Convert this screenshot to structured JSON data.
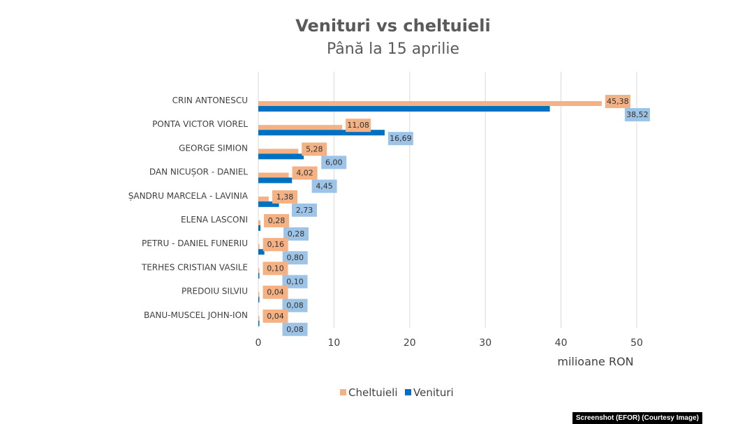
{
  "chart_data": {
    "type": "bar",
    "orientation": "horizontal",
    "title": "Venituri vs cheltuieli",
    "subtitle": "Până la 15 aprilie",
    "xlabel": "milioane RON",
    "xlim": [
      0,
      50
    ],
    "xticks": [
      0,
      10,
      20,
      30,
      40,
      50
    ],
    "grid": true,
    "legend_position": "bottom",
    "categories": [
      "CRIN ANTONESCU",
      "PONTA VICTOR VIOREL",
      "GEORGE SIMION",
      "DAN NICUȘOR - DANIEL",
      "ȘANDRU MARCELA - LAVINIA",
      "ELENA LASCONI",
      "PETRU - DANIEL FUNERIU",
      "TERHES CRISTIAN VASILE",
      "PREDOIU SILVIU",
      "BANU-MUSCEL JOHN-ION"
    ],
    "series": [
      {
        "name": "Cheltuieli",
        "color": "#F4B183",
        "label_bg": "#F4B183",
        "values": [
          45.38,
          11.08,
          5.28,
          4.02,
          1.38,
          0.28,
          0.16,
          0.1,
          0.04,
          0.04
        ],
        "labels": [
          "45,38",
          "11,08",
          "5,28",
          "4,02",
          "1,38",
          "0,28",
          "0,16",
          "0,10",
          "0,04",
          "0,04"
        ]
      },
      {
        "name": "Venituri",
        "color": "#0070C0",
        "label_bg": "#9DC3E6",
        "values": [
          38.52,
          16.69,
          6.0,
          4.45,
          2.73,
          0.28,
          0.8,
          0.1,
          0.08,
          0.08
        ],
        "labels": [
          "38,52",
          "16,69",
          "6,00",
          "4,45",
          "2,73",
          "0,28",
          "0,80",
          "0,10",
          "0,08",
          "0,08"
        ]
      }
    ]
  },
  "credit": "Screenshot (EFOR) (Courtesy Image)"
}
